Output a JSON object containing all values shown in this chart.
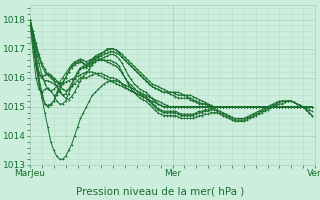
{
  "title": "Pression niveau de la mer( hPa )",
  "xlim": [
    0,
    96
  ],
  "ylim": [
    1013.0,
    1018.5
  ],
  "yticks": [
    1013,
    1014,
    1015,
    1016,
    1017,
    1018
  ],
  "xtick_positions": [
    0,
    48,
    96
  ],
  "xtick_labels": [
    "MarJeu",
    "Mer",
    "Ven"
  ],
  "bg_color": "#cceedd",
  "grid_major_color": "#aaccbb",
  "grid_minor_color": "#bbddcc",
  "line_color": "#1a6e2e",
  "series": [
    [
      1018.0,
      1017.6,
      1017.2,
      1016.8,
      1016.5,
      1016.3,
      1016.1,
      1016.0,
      1015.9,
      1015.85,
      1015.8,
      1015.82,
      1015.85,
      1015.9,
      1015.95,
      1016.0,
      1016.05,
      1016.1,
      1016.15,
      1016.2,
      1016.2,
      1016.2,
      1016.15,
      1016.1,
      1016.05,
      1016.0,
      1015.95,
      1015.9,
      1015.85,
      1015.8,
      1015.75,
      1015.7,
      1015.65,
      1015.6,
      1015.55,
      1015.5,
      1015.45,
      1015.4,
      1015.35,
      1015.3,
      1015.25,
      1015.2,
      1015.15,
      1015.1,
      1015.05,
      1015.0,
      1015.0,
      1015.0,
      1015.0,
      1015.0,
      1015.0,
      1015.0,
      1015.0,
      1015.0,
      1015.0,
      1015.0,
      1015.0,
      1015.0,
      1015.0,
      1015.0,
      1015.0,
      1015.0,
      1015.0,
      1015.0,
      1015.0,
      1015.0,
      1015.0,
      1015.0,
      1015.0,
      1015.0,
      1015.0,
      1015.0,
      1015.0,
      1015.0,
      1015.0,
      1015.0,
      1015.0,
      1015.0,
      1015.0,
      1015.0,
      1015.0,
      1015.0,
      1015.0,
      1015.0,
      1015.0,
      1015.0,
      1015.0,
      1015.0,
      1015.0,
      1015.0,
      1015.0,
      1015.0,
      1015.0,
      1015.0,
      1015.0,
      1015.0
    ],
    [
      1018.0,
      1017.4,
      1016.7,
      1016.0,
      1015.5,
      1015.1,
      1015.0,
      1015.05,
      1015.2,
      1015.5,
      1015.7,
      1015.85,
      1016.0,
      1016.2,
      1016.4,
      1016.5,
      1016.55,
      1016.6,
      1016.5,
      1016.4,
      1016.5,
      1016.6,
      1016.7,
      1016.75,
      1016.8,
      1016.9,
      1017.0,
      1017.0,
      1017.0,
      1016.95,
      1016.85,
      1016.7,
      1016.6,
      1016.5,
      1016.4,
      1016.3,
      1016.2,
      1016.1,
      1016.0,
      1015.9,
      1015.8,
      1015.7,
      1015.65,
      1015.6,
      1015.55,
      1015.5,
      1015.5,
      1015.5,
      1015.5,
      1015.45,
      1015.4,
      1015.4,
      1015.4,
      1015.4,
      1015.4,
      1015.35,
      1015.3,
      1015.25,
      1015.2,
      1015.15,
      1015.1,
      1015.05,
      1015.0,
      1015.0,
      1015.0,
      1015.0,
      1015.0,
      1015.0,
      1015.0,
      1015.0,
      1015.0,
      1015.0,
      1015.0,
      1015.0,
      1015.0,
      1015.0,
      1015.0,
      1015.0,
      1015.0,
      1015.0,
      1015.0,
      1015.0,
      1015.0,
      1015.0,
      1015.0,
      1015.0,
      1015.0,
      1015.0,
      1015.0,
      1015.0,
      1015.0,
      1015.0,
      1015.0,
      1015.0,
      1015.0,
      1015.0
    ],
    [
      1018.0,
      1017.2,
      1016.4,
      1015.8,
      1015.3,
      1014.8,
      1014.3,
      1013.8,
      1013.5,
      1013.3,
      1013.2,
      1013.2,
      1013.3,
      1013.5,
      1013.7,
      1014.0,
      1014.3,
      1014.6,
      1014.8,
      1015.0,
      1015.2,
      1015.4,
      1015.5,
      1015.6,
      1015.7,
      1015.8,
      1015.85,
      1015.9,
      1015.9,
      1015.9,
      1015.85,
      1015.8,
      1015.75,
      1015.7,
      1015.65,
      1015.6,
      1015.55,
      1015.5,
      1015.45,
      1015.4,
      1015.35,
      1015.3,
      1015.25,
      1015.2,
      1015.15,
      1015.1,
      1015.05,
      1015.0,
      1015.0,
      1015.0,
      1015.0,
      1015.0,
      1015.0,
      1015.0,
      1015.0,
      1015.0,
      1015.0,
      1015.0,
      1015.0,
      1015.0,
      1015.0,
      1015.0,
      1015.0,
      1015.0,
      1015.0,
      1015.0,
      1015.0,
      1015.0,
      1015.0,
      1015.0,
      1015.0,
      1015.0,
      1015.0,
      1015.0,
      1015.0,
      1015.0,
      1015.0,
      1015.0,
      1015.0,
      1015.0,
      1015.0,
      1015.0,
      1015.0,
      1015.0,
      1015.0,
      1015.0,
      1015.0,
      1015.0,
      1015.0,
      1015.0,
      1015.0,
      1015.0,
      1015.0,
      1015.0,
      1015.0,
      1015.0
    ],
    [
      1018.0,
      1017.5,
      1017.0,
      1016.5,
      1016.1,
      1015.8,
      1015.6,
      1015.55,
      1015.6,
      1015.7,
      1015.85,
      1016.0,
      1016.15,
      1016.3,
      1016.45,
      1016.55,
      1016.6,
      1016.65,
      1016.6,
      1016.55,
      1016.6,
      1016.65,
      1016.7,
      1016.7,
      1016.75,
      1016.8,
      1016.85,
      1016.9,
      1016.9,
      1016.85,
      1016.8,
      1016.7,
      1016.6,
      1016.5,
      1016.4,
      1016.3,
      1016.2,
      1016.1,
      1016.0,
      1015.9,
      1015.8,
      1015.7,
      1015.65,
      1015.6,
      1015.55,
      1015.5,
      1015.5,
      1015.45,
      1015.4,
      1015.35,
      1015.3,
      1015.3,
      1015.3,
      1015.3,
      1015.25,
      1015.2,
      1015.15,
      1015.1,
      1015.1,
      1015.1,
      1015.05,
      1015.0,
      1015.0,
      1015.0,
      1015.0,
      1015.0,
      1015.0,
      1015.0,
      1015.0,
      1015.0,
      1015.0,
      1015.0,
      1015.0,
      1015.0,
      1015.0,
      1015.0,
      1015.0,
      1015.0,
      1015.0,
      1015.0,
      1015.0,
      1015.0,
      1015.0,
      1015.0,
      1015.0,
      1015.0,
      1015.0,
      1015.0,
      1015.0,
      1015.0,
      1015.0,
      1015.0,
      1015.0,
      1015.0,
      1015.0,
      1015.0
    ],
    [
      1018.0,
      1017.3,
      1016.5,
      1015.8,
      1015.4,
      1015.1,
      1015.05,
      1015.1,
      1015.2,
      1015.4,
      1015.6,
      1015.8,
      1016.0,
      1016.2,
      1016.35,
      1016.45,
      1016.5,
      1016.55,
      1016.5,
      1016.45,
      1016.55,
      1016.65,
      1016.75,
      1016.8,
      1016.85,
      1016.9,
      1016.95,
      1017.0,
      1017.0,
      1016.95,
      1016.9,
      1016.8,
      1016.7,
      1016.6,
      1016.5,
      1016.4,
      1016.3,
      1016.2,
      1016.1,
      1016.0,
      1015.9,
      1015.8,
      1015.75,
      1015.7,
      1015.65,
      1015.6,
      1015.55,
      1015.5,
      1015.5,
      1015.5,
      1015.5,
      1015.45,
      1015.4,
      1015.35,
      1015.3,
      1015.25,
      1015.2,
      1015.15,
      1015.1,
      1015.1,
      1015.05,
      1015.0,
      1015.0,
      1015.0,
      1015.0,
      1015.0,
      1015.0,
      1015.0,
      1015.0,
      1015.0,
      1015.0,
      1015.0,
      1015.0,
      1015.0,
      1015.0,
      1015.0,
      1015.0,
      1015.0,
      1015.0,
      1015.0,
      1015.0,
      1015.0,
      1015.0,
      1015.0,
      1015.0,
      1015.0,
      1015.0,
      1015.0,
      1015.0,
      1015.0,
      1015.0,
      1015.0,
      1015.0,
      1015.0,
      1015.0,
      1015.0
    ],
    [
      1018.0,
      1017.5,
      1016.8,
      1016.2,
      1016.0,
      1015.9,
      1015.9,
      1015.85,
      1015.8,
      1015.7,
      1015.55,
      1015.4,
      1015.3,
      1015.25,
      1015.35,
      1015.5,
      1015.7,
      1015.9,
      1016.05,
      1016.15,
      1016.3,
      1016.45,
      1016.55,
      1016.6,
      1016.65,
      1016.7,
      1016.75,
      1016.8,
      1016.8,
      1016.75,
      1016.65,
      1016.5,
      1016.3,
      1016.1,
      1015.95,
      1015.8,
      1015.7,
      1015.6,
      1015.55,
      1015.5,
      1015.4,
      1015.3,
      1015.2,
      1015.1,
      1015.05,
      1015.0,
      1015.0,
      1015.0,
      1015.0,
      1015.0,
      1015.0,
      1015.0,
      1015.0,
      1015.0,
      1015.0,
      1015.0,
      1015.0,
      1015.0,
      1015.0,
      1015.0,
      1015.0,
      1015.0,
      1015.0,
      1015.0,
      1015.0,
      1015.0,
      1015.0,
      1015.0,
      1015.0,
      1015.0,
      1015.0,
      1015.0,
      1015.0,
      1015.0,
      1015.0,
      1015.0,
      1015.0,
      1015.0,
      1015.0,
      1015.0,
      1015.0,
      1015.0,
      1015.0,
      1015.0,
      1015.0,
      1015.0,
      1015.0,
      1015.0,
      1015.0,
      1015.0,
      1015.0,
      1015.0,
      1015.0,
      1015.0,
      1015.0,
      1015.0
    ],
    [
      1017.9,
      1016.9,
      1016.0,
      1015.6,
      1015.5,
      1015.6,
      1015.65,
      1015.55,
      1015.4,
      1015.2,
      1015.1,
      1015.1,
      1015.2,
      1015.45,
      1015.7,
      1015.95,
      1016.15,
      1016.3,
      1016.35,
      1016.35,
      1016.4,
      1016.5,
      1016.6,
      1016.6,
      1016.6,
      1016.6,
      1016.6,
      1016.6,
      1016.55,
      1016.5,
      1016.4,
      1016.2,
      1016.0,
      1015.8,
      1015.65,
      1015.5,
      1015.4,
      1015.3,
      1015.25,
      1015.2,
      1015.1,
      1015.0,
      1014.9,
      1014.8,
      1014.75,
      1014.7,
      1014.7,
      1014.7,
      1014.7,
      1014.7,
      1014.65,
      1014.6,
      1014.6,
      1014.6,
      1014.6,
      1014.6,
      1014.65,
      1014.7,
      1014.7,
      1014.75,
      1014.75,
      1014.8,
      1014.8,
      1014.8,
      1014.75,
      1014.7,
      1014.65,
      1014.6,
      1014.55,
      1014.5,
      1014.5,
      1014.5,
      1014.5,
      1014.55,
      1014.6,
      1014.65,
      1014.7,
      1014.75,
      1014.8,
      1014.85,
      1014.9,
      1014.95,
      1015.0,
      1015.05,
      1015.1,
      1015.1,
      1015.15,
      1015.2,
      1015.2,
      1015.15,
      1015.1,
      1015.05,
      1015.0,
      1014.95,
      1014.9,
      1014.85
    ],
    [
      1018.0,
      1017.3,
      1016.5,
      1016.1,
      1016.0,
      1016.1,
      1016.15,
      1016.1,
      1015.95,
      1015.7,
      1015.5,
      1015.4,
      1015.45,
      1015.6,
      1015.8,
      1016.0,
      1016.2,
      1016.35,
      1016.4,
      1016.4,
      1016.45,
      1016.55,
      1016.65,
      1016.65,
      1016.65,
      1016.6,
      1016.55,
      1016.5,
      1016.45,
      1016.4,
      1016.3,
      1016.15,
      1016.0,
      1015.85,
      1015.75,
      1015.65,
      1015.55,
      1015.45,
      1015.4,
      1015.35,
      1015.25,
      1015.15,
      1015.05,
      1014.95,
      1014.9,
      1014.85,
      1014.85,
      1014.85,
      1014.85,
      1014.85,
      1014.8,
      1014.75,
      1014.75,
      1014.75,
      1014.75,
      1014.75,
      1014.8,
      1014.85,
      1014.85,
      1014.9,
      1014.9,
      1014.95,
      1014.95,
      1014.9,
      1014.85,
      1014.8,
      1014.75,
      1014.7,
      1014.65,
      1014.6,
      1014.6,
      1014.6,
      1014.6,
      1014.65,
      1014.7,
      1014.75,
      1014.8,
      1014.85,
      1014.9,
      1014.95,
      1015.0,
      1015.05,
      1015.1,
      1015.15,
      1015.2,
      1015.2,
      1015.2,
      1015.2,
      1015.2,
      1015.15,
      1015.1,
      1015.05,
      1015.0,
      1014.9,
      1014.8,
      1014.7
    ],
    [
      1018.0,
      1017.6,
      1017.1,
      1016.7,
      1016.4,
      1016.2,
      1016.1,
      1016.05,
      1016.0,
      1015.9,
      1015.75,
      1015.6,
      1015.55,
      1015.6,
      1015.7,
      1015.8,
      1015.9,
      1016.0,
      1016.0,
      1016.0,
      1016.05,
      1016.1,
      1016.15,
      1016.15,
      1016.15,
      1016.1,
      1016.05,
      1016.0,
      1016.0,
      1015.95,
      1015.9,
      1015.8,
      1015.7,
      1015.6,
      1015.55,
      1015.5,
      1015.45,
      1015.4,
      1015.35,
      1015.3,
      1015.2,
      1015.1,
      1015.0,
      1014.9,
      1014.85,
      1014.8,
      1014.8,
      1014.8,
      1014.8,
      1014.8,
      1014.75,
      1014.7,
      1014.7,
      1014.7,
      1014.7,
      1014.7,
      1014.75,
      1014.8,
      1014.8,
      1014.85,
      1014.85,
      1014.9,
      1014.9,
      1014.85,
      1014.8,
      1014.75,
      1014.7,
      1014.65,
      1014.6,
      1014.55,
      1014.55,
      1014.55,
      1014.55,
      1014.6,
      1014.65,
      1014.7,
      1014.75,
      1014.8,
      1014.85,
      1014.9,
      1014.95,
      1015.0,
      1015.05,
      1015.1,
      1015.15,
      1015.2,
      1015.2,
      1015.2,
      1015.2,
      1015.15,
      1015.1,
      1015.05,
      1015.0,
      1014.9,
      1014.8,
      1014.7
    ]
  ]
}
